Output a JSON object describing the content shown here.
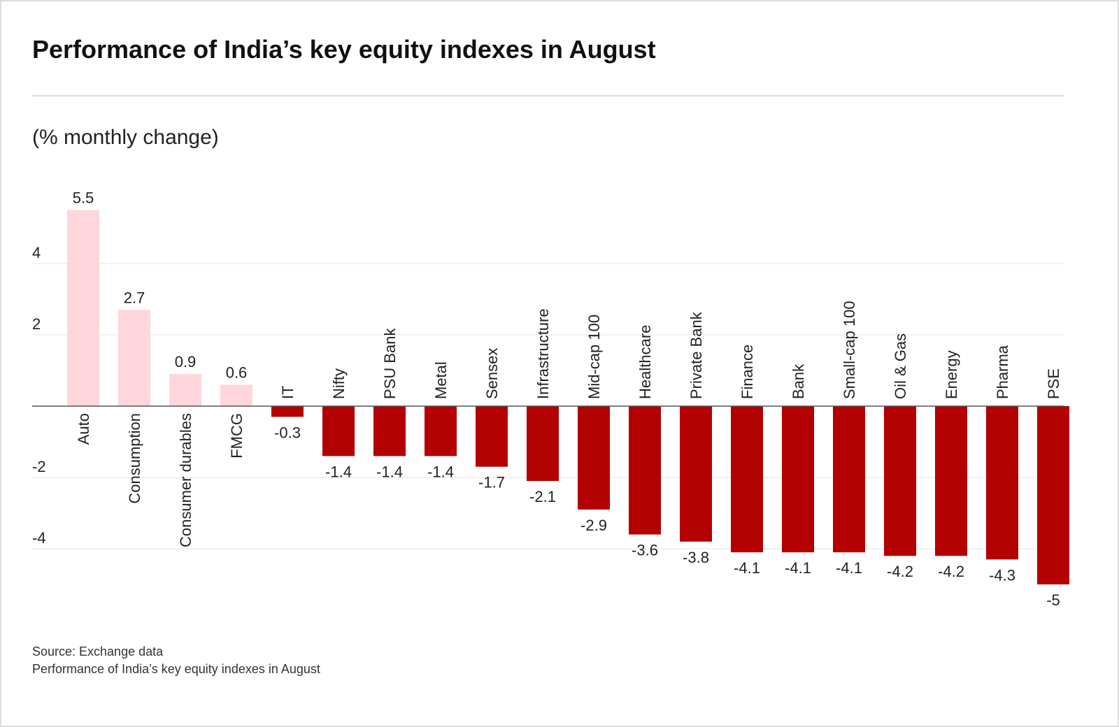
{
  "title": "Performance of India’s key equity indexes in August",
  "subtitle": "(% monthly change)",
  "footer": {
    "source": "Source: Exchange data",
    "caption": "Performance of India’s key equity indexes in August"
  },
  "colors": {
    "positive": "#ffd6dc",
    "negative": "#b30000",
    "grid": "#e6e6e6",
    "axis": "#555555",
    "text": "#222222"
  },
  "chart_data": {
    "type": "bar",
    "title": "Performance of India’s key equity indexes in August",
    "ylabel": "(% monthly change)",
    "xlabel": "",
    "ylim": [
      -5.5,
      6
    ],
    "yticks": [
      -4,
      -2,
      2,
      4
    ],
    "grid": true,
    "categories": [
      "Auto",
      "Consumption",
      "Consumer durables",
      "FMCG",
      "IT",
      "Nifty",
      "PSU Bank",
      "Metal",
      "Sensex",
      "Infrastructure",
      "Mid-cap 100",
      "Healthcare",
      "Private Bank",
      "Finance",
      "Bank",
      "Small-cap 100",
      "Oil & Gas",
      "Energy",
      "Pharma",
      "PSE"
    ],
    "values": [
      5.5,
      2.7,
      0.9,
      0.6,
      -0.3,
      -1.4,
      -1.4,
      -1.4,
      -1.7,
      -2.1,
      -2.9,
      -3.6,
      -3.8,
      -4.1,
      -4.1,
      -4.1,
      -4.2,
      -4.2,
      -4.3,
      -5
    ],
    "value_labels": [
      "5.5",
      "2.7",
      "0.9",
      "0.6",
      "-0.3",
      "-1.4",
      "-1.4",
      "-1.4",
      "-1.7",
      "-2.1",
      "-2.9",
      "-3.6",
      "-3.8",
      "-4.1",
      "-4.1",
      "-4.1",
      "-4.2",
      "-4.2",
      "-4.3",
      "-5"
    ]
  }
}
